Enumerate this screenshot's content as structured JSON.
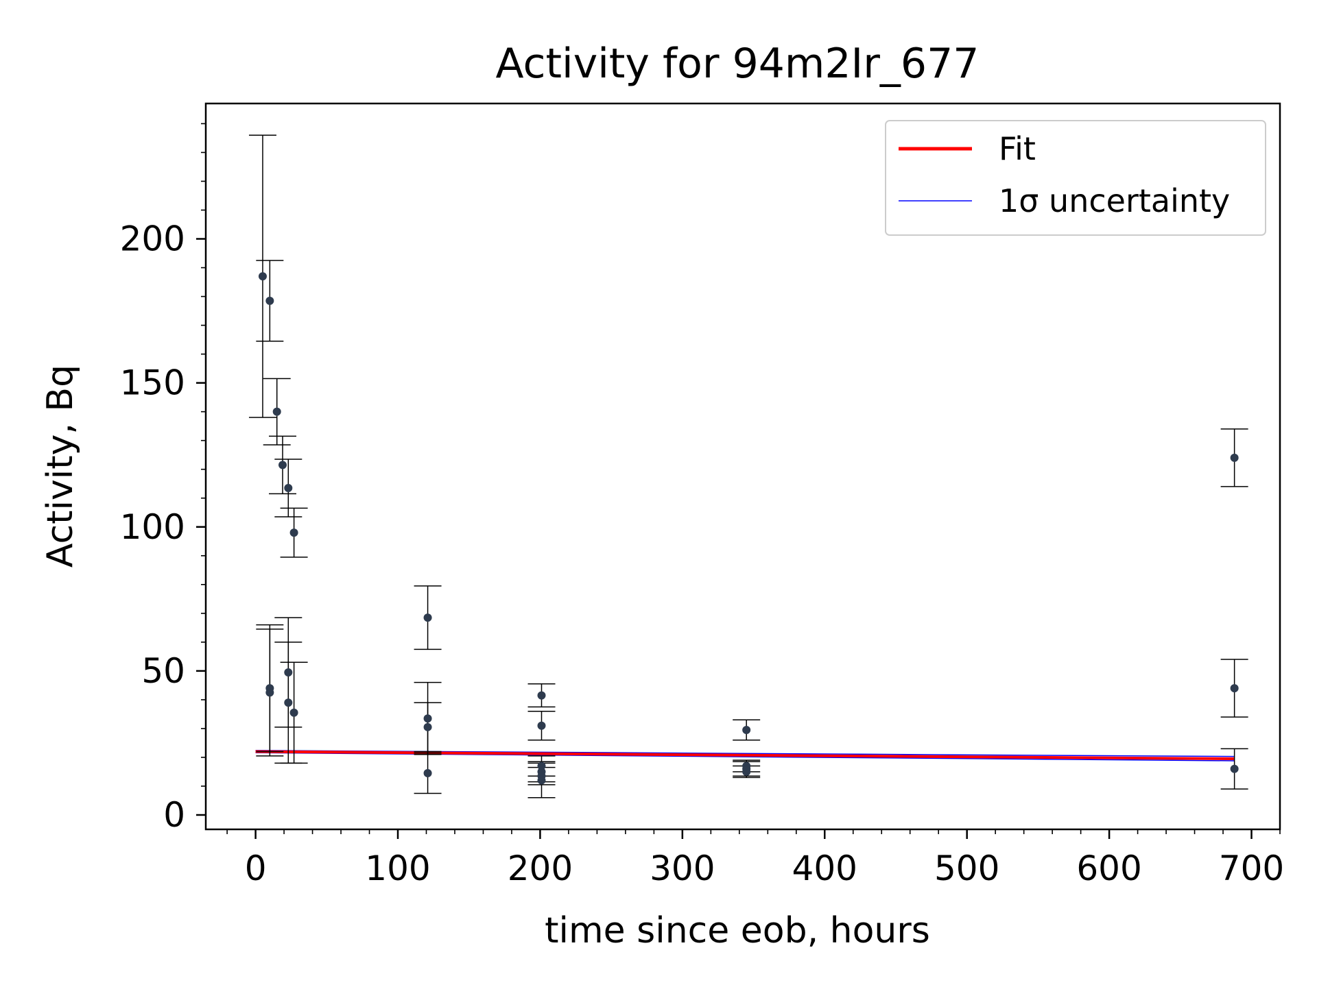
{
  "chart_data": {
    "type": "scatter",
    "title": "Activity for 94m2Ir_677",
    "xlabel": "time since eob, hours",
    "ylabel": "Activity, Bq",
    "xlim": [
      -35,
      720
    ],
    "ylim": [
      -5,
      247
    ],
    "x_ticks": [
      0,
      100,
      200,
      300,
      400,
      500,
      600,
      700
    ],
    "y_ticks": [
      0,
      50,
      100,
      150,
      200
    ],
    "x_tick_labels": [
      "0",
      "100",
      "200",
      "300",
      "400",
      "500",
      "600",
      "700"
    ],
    "y_tick_labels": [
      "0",
      "50",
      "100",
      "150",
      "200"
    ],
    "grid": false,
    "legend_position": "top-right",
    "colors": {
      "points": "#2e3b4e",
      "errorbars": "#000000",
      "fit": "#ff0000",
      "uncertainty": "#0000ff"
    },
    "legend": [
      {
        "label": "Fit",
        "color": "#ff0000"
      },
      {
        "label": "1σ uncertainty",
        "color": "#0000ff"
      }
    ],
    "series": [
      {
        "name": "",
        "points": [
          {
            "x": 5,
            "y": 187,
            "err": 49
          },
          {
            "x": 10,
            "y": 178.5,
            "err": 14
          },
          {
            "x": 15,
            "y": 140,
            "err": 11.5
          },
          {
            "x": 19,
            "y": 121.5,
            "err": 10
          },
          {
            "x": 23,
            "y": 113.5,
            "err": 10
          },
          {
            "x": 27,
            "y": 98,
            "err": 8.5
          },
          {
            "x": 10,
            "y": 44,
            "err": 22
          },
          {
            "x": 10,
            "y": 42.5,
            "err": 22
          },
          {
            "x": 23,
            "y": 49.5,
            "err": 19
          },
          {
            "x": 23,
            "y": 39,
            "err": 21
          },
          {
            "x": 27,
            "y": 35.5,
            "err": 17.5
          },
          {
            "x": 121,
            "y": 68.5,
            "err": 11
          },
          {
            "x": 121,
            "y": 33.5,
            "err": 12.5
          },
          {
            "x": 121,
            "y": 30.5,
            "err": 8.5
          },
          {
            "x": 121,
            "y": 14.5,
            "err": 7
          },
          {
            "x": 201,
            "y": 41.5,
            "err": 4
          },
          {
            "x": 201,
            "y": 31,
            "err": 5
          },
          {
            "x": 201,
            "y": 17,
            "err": 3.5
          },
          {
            "x": 201,
            "y": 15,
            "err": 3.5
          },
          {
            "x": 201,
            "y": 13.5,
            "err": 3
          },
          {
            "x": 201,
            "y": 12,
            "err": 6
          },
          {
            "x": 345,
            "y": 29.5,
            "err": 3.5
          },
          {
            "x": 345,
            "y": 17,
            "err": 2
          },
          {
            "x": 345,
            "y": 16,
            "err": 2.5
          },
          {
            "x": 345,
            "y": 15,
            "err": 2
          },
          {
            "x": 688,
            "y": 124,
            "err": 10
          },
          {
            "x": 688,
            "y": 44,
            "err": 10
          },
          {
            "x": 688,
            "y": 16,
            "err": 7
          }
        ]
      }
    ],
    "fit": {
      "name": "Fit",
      "x": [
        0,
        688
      ],
      "y": [
        22,
        19.5
      ]
    },
    "uncertainty": {
      "name": "1σ uncertainty",
      "upper": {
        "x": [
          0,
          688
        ],
        "y": [
          22.4,
          20.3
        ]
      },
      "lower": {
        "x": [
          0,
          688
        ],
        "y": [
          21.6,
          18.8
        ]
      }
    }
  }
}
